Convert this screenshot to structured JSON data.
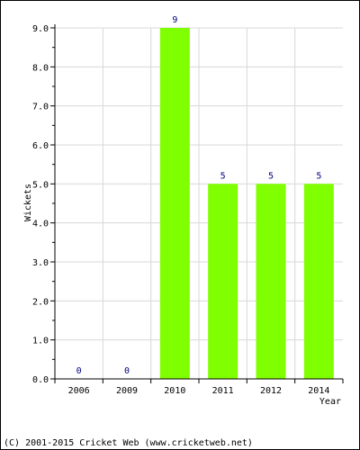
{
  "chart_data": {
    "type": "bar",
    "categories": [
      "2006",
      "2009",
      "2010",
      "2011",
      "2012",
      "2014"
    ],
    "values": [
      0,
      0,
      9,
      5,
      5,
      5
    ],
    "data_labels": [
      "0",
      "0",
      "9",
      "5",
      "5",
      "5"
    ],
    "title": "",
    "xlabel": "Year",
    "ylabel": "Wickets",
    "ylim": [
      0,
      9
    ],
    "yticks": [
      "0.0",
      "1.0",
      "2.0",
      "3.0",
      "4.0",
      "5.0",
      "6.0",
      "7.0",
      "8.0",
      "9.0"
    ],
    "grid": true,
    "colors": {
      "bar": "#80ff00",
      "data_label": "#000080",
      "grid": "#d8d8d8"
    }
  },
  "footer": {
    "copyright": "(C) 2001-2015 Cricket Web (www.cricketweb.net)"
  }
}
